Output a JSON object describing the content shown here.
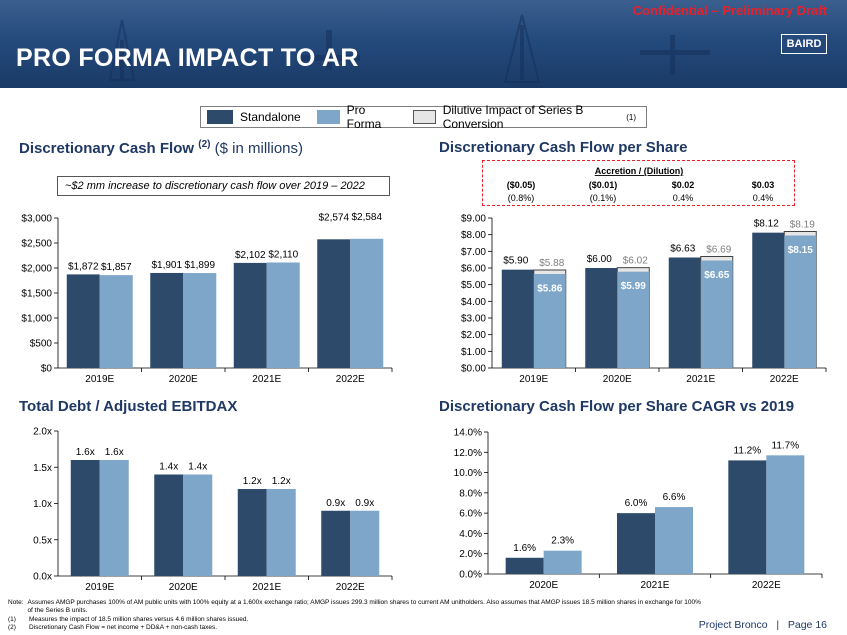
{
  "header": {
    "confidential": "Confidential – Preliminary Draft",
    "title": "PRO FORMA IMPACT TO AR",
    "logo": "BAIRD"
  },
  "colors": {
    "standalone": "#2e4a6b",
    "pro_forma": "#7ea6c9",
    "dilutive": "#e7e6e6",
    "header": "#244a7c",
    "accent_red": "#e8202a"
  },
  "legend": {
    "standalone": "Standalone",
    "pro_forma": "Pro Forma",
    "dilutive": "Dilutive Impact of Series B Conversion",
    "dilutive_note": "(1)"
  },
  "sections": {
    "dcf_title": "Discretionary Cash Flow",
    "dcf_sup": "(2)",
    "dcf_units": "($ in millions)",
    "dcfps_title": "Discretionary Cash Flow per Share",
    "debt_title": "Total Debt / Adjusted EBITDAX",
    "cagr_title": "Discretionary Cash Flow per Share CAGR vs 2019"
  },
  "callout": "~$2 mm increase to discretionary cash flow over 2019 – 2022",
  "accretion": {
    "title": "Accretion / (Dilution)",
    "dollars": [
      "($0.05)",
      "($0.01)",
      "$0.02",
      "$0.03"
    ],
    "percents": [
      "(0.8%)",
      "(0.1%)",
      "0.4%",
      "0.4%"
    ]
  },
  "chart_data": [
    {
      "id": "dcf",
      "type": "bar",
      "categories": [
        "2019E",
        "2020E",
        "2021E",
        "2022E"
      ],
      "series": [
        {
          "name": "Standalone",
          "values": [
            1872,
            1901,
            2102,
            2574
          ],
          "labels": [
            "$1,872",
            "$1,901",
            "$2,102",
            "$2,574"
          ]
        },
        {
          "name": "Pro Forma",
          "values": [
            1857,
            1899,
            2110,
            2584
          ],
          "labels": [
            "$1,857",
            "$1,899",
            "$2,110",
            "$2,584"
          ]
        }
      ],
      "ylim": [
        0,
        3000
      ],
      "yticks": [
        0,
        500,
        1000,
        1500,
        2000,
        2500,
        3000
      ],
      "yticklabels": [
        "$0",
        "$500",
        "$1,000",
        "$1,500",
        "$2,000",
        "$2,500",
        "$3,000"
      ]
    },
    {
      "id": "dcfps",
      "type": "bar",
      "categories": [
        "2019E",
        "2020E",
        "2021E",
        "2022E"
      ],
      "series": [
        {
          "name": "Standalone",
          "values": [
            5.9,
            6.0,
            6.63,
            8.12
          ],
          "labels": [
            "$5.90",
            "$6.00",
            "$6.63",
            "$8.12"
          ]
        },
        {
          "name": "Pro Forma",
          "values": [
            5.86,
            5.99,
            6.65,
            8.15
          ],
          "labels": [
            "$5.86",
            "$5.99",
            "$6.65",
            "$8.15"
          ]
        },
        {
          "name": "Dilutive Impact of Series B Conversion",
          "values": [
            5.88,
            6.02,
            6.69,
            8.19
          ],
          "labels": [
            "$5.88",
            "$6.02",
            "$6.69",
            "$8.19"
          ]
        }
      ],
      "ylim": [
        0,
        9
      ],
      "yticks": [
        0,
        1,
        2,
        3,
        4,
        5,
        6,
        7,
        8,
        9
      ],
      "yticklabels": [
        "$0.00",
        "$1.00",
        "$2.00",
        "$3.00",
        "$4.00",
        "$5.00",
        "$6.00",
        "$7.00",
        "$8.00",
        "$9.00"
      ]
    },
    {
      "id": "debt",
      "type": "bar",
      "categories": [
        "2019E",
        "2020E",
        "2021E",
        "2022E"
      ],
      "series": [
        {
          "name": "Standalone",
          "values": [
            1.6,
            1.4,
            1.2,
            0.9
          ],
          "labels": [
            "1.6x",
            "1.4x",
            "1.2x",
            "0.9x"
          ]
        },
        {
          "name": "Pro Forma",
          "values": [
            1.6,
            1.4,
            1.2,
            0.9
          ],
          "labels": [
            "1.6x",
            "1.4x",
            "1.2x",
            "0.9x"
          ]
        }
      ],
      "ylim": [
        0,
        2.0
      ],
      "yticks": [
        0,
        0.5,
        1.0,
        1.5,
        2.0
      ],
      "yticklabels": [
        "0.0x",
        "0.5x",
        "1.0x",
        "1.5x",
        "2.0x"
      ]
    },
    {
      "id": "cagr",
      "type": "bar",
      "categories": [
        "2020E",
        "2021E",
        "2022E"
      ],
      "series": [
        {
          "name": "Standalone",
          "values": [
            1.6,
            6.0,
            11.2
          ],
          "labels": [
            "1.6%",
            "6.0%",
            "11.2%"
          ]
        },
        {
          "name": "Pro Forma",
          "values": [
            2.3,
            6.6,
            11.7
          ],
          "labels": [
            "2.3%",
            "6.6%",
            "11.7%"
          ]
        }
      ],
      "ylim": [
        0,
        14
      ],
      "yticks": [
        0,
        2,
        4,
        6,
        8,
        10,
        12,
        14
      ],
      "yticklabels": [
        "0.0%",
        "2.0%",
        "4.0%",
        "6.0%",
        "8.0%",
        "10.0%",
        "12.0%",
        "14.0%"
      ]
    }
  ],
  "notes": [
    {
      "key": "Note:",
      "text": "Assumes AMGP purchases 100% of AM public units with 100% equity at a 1.600x exchange ratio; AMGP issues 299.3 million shares to current AM unitholders. Also assumes that AMGP issues 18.5 million shares in exchange for 100% of the Series B units."
    },
    {
      "key": "(1)",
      "text": "Measures the impact of 18.5 million shares versus 4.6 million shares issued."
    },
    {
      "key": "(2)",
      "text": "Discretionary Cash Flow  =  net income  +  DD&A  +  non-cash taxes."
    }
  ],
  "footer": {
    "project": "Project Bronco",
    "separator": "|",
    "page": "Page 16"
  }
}
